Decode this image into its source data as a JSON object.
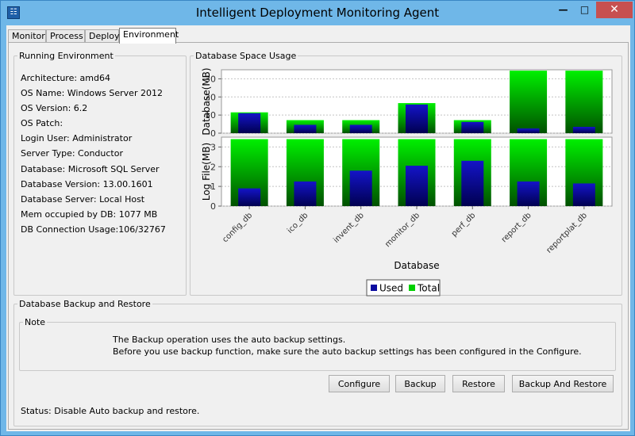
{
  "window": {
    "title": "Intelligent Deployment Monitoring Agent",
    "minimize": "—",
    "maximize": "□",
    "close": "✕"
  },
  "tabs": [
    {
      "label": "Monitor"
    },
    {
      "label": "Process"
    },
    {
      "label": "Deploy"
    },
    {
      "label": "Environment",
      "selected": true
    }
  ],
  "running_environment": {
    "title": "Running Environment",
    "rows": [
      "Architecture: amd64",
      "OS Name: Windows Server 2012",
      "OS Version: 6.2",
      "OS Patch:",
      "Login User: Administrator",
      "Server Type: Conductor",
      "Database: Microsoft SQL Server",
      "Database Version: 13.00.1601",
      "Database Server: Local Host",
      "Mem occupied by DB: 1077 MB",
      "DB Connection Usage:106/32767"
    ]
  },
  "database_space": {
    "title": "Database Space Usage"
  },
  "chart_data": {
    "type": "bar",
    "categories": [
      "config_db",
      "ico_db",
      "invent_db",
      "monitor_db",
      "perf_db",
      "report_db",
      "reportplat_db"
    ],
    "xlabel": "Database",
    "legend": "bottom-center",
    "grid": true,
    "panels": [
      {
        "ylabel": "Database(MB)",
        "ylim": [
          0,
          35
        ],
        "yticks": [
          0,
          10,
          20,
          30
        ],
        "series": [
          {
            "name": "Used",
            "color": "#0a0a9e",
            "values": [
              11,
              4.6,
              4.6,
              15.8,
              6.2,
              2.6,
              3.5
            ]
          },
          {
            "name": "Total",
            "color": "#00e000",
            "values": [
              11.5,
              7.2,
              7.2,
              16.6,
              7.2,
              34.5,
              34.5
            ]
          }
        ]
      },
      {
        "ylabel": "Log File(MB)",
        "ylim": [
          0,
          3.5
        ],
        "yticks": [
          0,
          1,
          2,
          3
        ],
        "series": [
          {
            "name": "Used",
            "color": "#0a0a9e",
            "values": [
              0.9,
              1.25,
              1.8,
              2.05,
              2.3,
              1.25,
              1.15
            ]
          },
          {
            "name": "Total",
            "color": "#00e000",
            "values": [
              3.4,
              3.4,
              3.4,
              3.4,
              3.4,
              3.4,
              3.4
            ]
          }
        ]
      }
    ]
  },
  "backup": {
    "title": "Database Backup and Restore",
    "note_title": "Note",
    "note_line1": "The Backup operation uses the auto backup settings.",
    "note_line2": "Before you use backup function, make sure the auto backup settings has been configured in the Configure.",
    "buttons": {
      "configure": "Configure",
      "backup": "Backup",
      "restore": "Restore",
      "backup_and_restore": "Backup And Restore"
    },
    "status": "Status: Disable Auto backup and restore."
  }
}
